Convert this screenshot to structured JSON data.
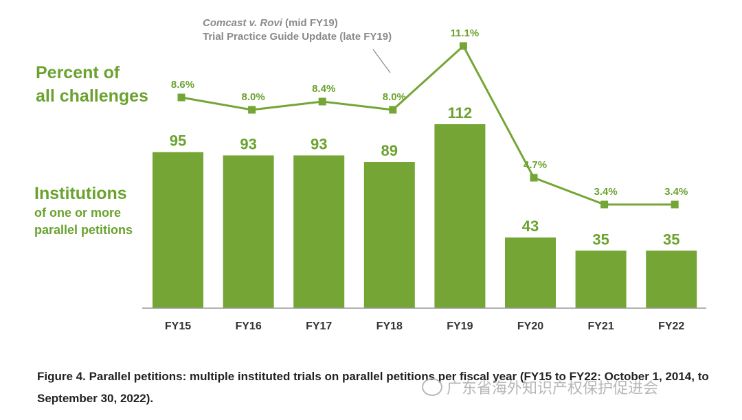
{
  "colors": {
    "bar": "#74a535",
    "line": "#74a535",
    "label": "#6aa22e",
    "axis": "#999999",
    "tick_text": "#333333",
    "annotation": "#8a8a8a"
  },
  "labels": {
    "percent_title_line1": "Percent of",
    "percent_title_line2": "all challenges",
    "inst_title": "Institutions",
    "inst_sub_line1": "of one or more",
    "inst_sub_line2": "parallel petitions"
  },
  "annotation": {
    "case_name": "Comcast v. Rovi",
    "case_suffix": " (mid FY19)",
    "line2": "Trial Practice Guide Update (late FY19)"
  },
  "caption": "Figure 4. Parallel petitions: multiple instituted trials on parallel petitions per fiscal year (FY15 to FY22: October 1, 2014, to September 30, 2022).",
  "watermark": "广东省海外知识产权保护促进会",
  "chart_data": {
    "type": "bar",
    "categories": [
      "FY15",
      "FY16",
      "FY17",
      "FY18",
      "FY19",
      "FY20",
      "FY21",
      "FY22"
    ],
    "series": [
      {
        "name": "Institutions of one or more parallel petitions",
        "type": "bar",
        "values": [
          95,
          93,
          93,
          89,
          112,
          43,
          35,
          35
        ]
      },
      {
        "name": "Percent of all challenges",
        "type": "line",
        "values": [
          8.6,
          8.0,
          8.4,
          8.0,
          11.1,
          4.7,
          3.4,
          3.4
        ],
        "value_labels": [
          "8.6%",
          "8.0%",
          "8.4%",
          "8.0%",
          "11.1%",
          "4.7%",
          "3.4%",
          "3.4%"
        ]
      }
    ],
    "bar_ylim": [
      0,
      120
    ],
    "line_ylim": [
      0,
      12
    ],
    "annotation_at": "FY18-FY19"
  }
}
